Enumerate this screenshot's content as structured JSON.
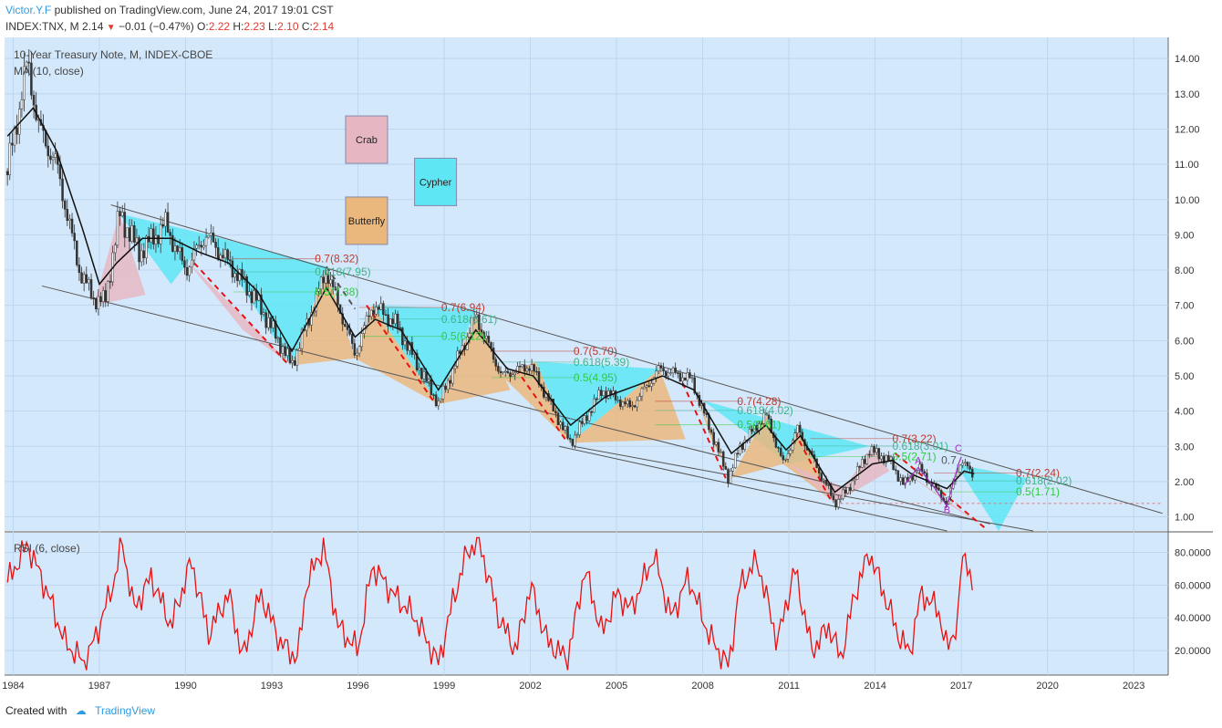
{
  "header": {
    "author": "Victor.Y.F",
    "published": "published on TradingView.com, June 24, 2017 19:01 CST",
    "symbol": "INDEX:TNX, M",
    "last": "2.14",
    "change": "−0.01 (−0.47%)",
    "o_label": "O:",
    "o": "2.22",
    "h_label": "H:",
    "h": "2.23",
    "l_label": "L:",
    "l": "2.10",
    "c_label": "C:",
    "c": "2.14"
  },
  "footer": {
    "created_with": "Created with",
    "brand": "TradingView"
  },
  "colors": {
    "background": "#d4e8fb",
    "candle": "#333333",
    "ma": "#111111",
    "rsi": "#e8110f",
    "cyan": "#5ee6f4",
    "pink": "#e6b7c3",
    "orange": "#eab77c"
  },
  "chart_data": [
    {
      "type": "line",
      "title": "10-Year Treasury Note, M, INDEX-CBOE",
      "indicator": "MA (10, close)",
      "xlim": [
        1983.7,
        2024.2
      ],
      "ylim": [
        0.6,
        14.6
      ],
      "y_ticks": [
        "14.00",
        "13.00",
        "12.00",
        "11.00",
        "10.00",
        "9.00",
        "8.00",
        "7.00",
        "6.00",
        "5.00",
        "4.00",
        "3.00",
        "2.00",
        "1.00"
      ],
      "y_tick_values": [
        14,
        13,
        12,
        11,
        10,
        9,
        8,
        7,
        6,
        5,
        4,
        3,
        2,
        1
      ],
      "x_ticks": [
        "1984",
        "1987",
        "1990",
        "1993",
        "1996",
        "1999",
        "2002",
        "2005",
        "2008",
        "2011",
        "2014",
        "2017",
        "2020",
        "2023"
      ],
      "x_tick_values": [
        1984,
        1987,
        1990,
        1993,
        1996,
        1999,
        2002,
        2005,
        2008,
        2011,
        2014,
        2017,
        2020,
        2023
      ],
      "price_path": [
        [
          1983.8,
          10.8
        ],
        [
          1984.5,
          13.9
        ],
        [
          1984.9,
          12.0
        ],
        [
          1985.5,
          11.0
        ],
        [
          1986.3,
          8.0
        ],
        [
          1986.8,
          7.2
        ],
        [
          1987.2,
          7.1
        ],
        [
          1987.7,
          9.6
        ],
        [
          1988.4,
          8.5
        ],
        [
          1989.3,
          9.3
        ],
        [
          1990.0,
          8.0
        ],
        [
          1990.7,
          9.0
        ],
        [
          1991.5,
          8.2
        ],
        [
          1992.5,
          7.1
        ],
        [
          1993.7,
          5.3
        ],
        [
          1994.9,
          8.0
        ],
        [
          1995.9,
          5.6
        ],
        [
          1996.5,
          7.0
        ],
        [
          1997.3,
          6.5
        ],
        [
          1998.8,
          4.2
        ],
        [
          2000.1,
          6.7
        ],
        [
          2001.0,
          5.0
        ],
        [
          2002.0,
          5.3
        ],
        [
          2003.4,
          3.1
        ],
        [
          2004.5,
          4.6
        ],
        [
          2005.5,
          4.1
        ],
        [
          2006.5,
          5.2
        ],
        [
          2007.6,
          4.9
        ],
        [
          2008.9,
          2.1
        ],
        [
          2009.3,
          3.0
        ],
        [
          2010.2,
          3.9
        ],
        [
          2010.8,
          2.5
        ],
        [
          2011.3,
          3.5
        ],
        [
          2012.6,
          1.4
        ],
        [
          2013.0,
          1.7
        ],
        [
          2013.8,
          2.9
        ],
        [
          2014.5,
          2.6
        ],
        [
          2015.0,
          1.9
        ],
        [
          2015.5,
          2.4
        ],
        [
          2016.5,
          1.4
        ],
        [
          2016.9,
          2.4
        ],
        [
          2017.0,
          2.6
        ],
        [
          2017.45,
          2.14
        ]
      ],
      "ma_path": [
        [
          1983.8,
          11.8
        ],
        [
          1984.7,
          12.6
        ],
        [
          1985.5,
          11.4
        ],
        [
          1986.4,
          9.2
        ],
        [
          1987.0,
          7.6
        ],
        [
          1987.6,
          8.2
        ],
        [
          1988.5,
          8.9
        ],
        [
          1989.5,
          8.9
        ],
        [
          1990.5,
          8.5
        ],
        [
          1991.5,
          8.2
        ],
        [
          1992.5,
          7.4
        ],
        [
          1993.7,
          5.7
        ],
        [
          1994.9,
          7.5
        ],
        [
          1995.9,
          6.1
        ],
        [
          1996.6,
          6.6
        ],
        [
          1997.5,
          6.3
        ],
        [
          1998.8,
          4.6
        ],
        [
          2000.1,
          6.3
        ],
        [
          2001.2,
          5.2
        ],
        [
          2002.1,
          5.0
        ],
        [
          2003.4,
          3.6
        ],
        [
          2004.6,
          4.4
        ],
        [
          2006.6,
          5.0
        ],
        [
          2007.7,
          4.6
        ],
        [
          2009.0,
          2.8
        ],
        [
          2010.2,
          3.6
        ],
        [
          2010.9,
          2.9
        ],
        [
          2011.4,
          3.3
        ],
        [
          2012.6,
          1.7
        ],
        [
          2013.9,
          2.5
        ],
        [
          2014.6,
          2.6
        ],
        [
          2015.3,
          2.2
        ],
        [
          2016.5,
          1.8
        ],
        [
          2017.1,
          2.3
        ],
        [
          2017.45,
          2.22
        ]
      ],
      "channel_lines": [
        [
          [
            1987.4,
            9.85
          ],
          [
            2024.0,
            1.1
          ]
        ],
        [
          [
            1985.0,
            7.55
          ],
          [
            2018.0,
            0.8
          ]
        ],
        [
          [
            2003.0,
            3.0
          ],
          [
            2016.5,
            0.6
          ]
        ],
        [
          [
            2003.5,
            3.0
          ],
          [
            2019.5,
            0.6
          ]
        ]
      ],
      "fib_labels": [
        {
          "text": "0.7(8.32)",
          "x": 1994.5,
          "y": 8.32,
          "color": "#c0392b"
        },
        {
          "text": "0.618(7.95)",
          "x": 1994.5,
          "y": 7.95,
          "color": "#3eb489"
        },
        {
          "text": "0.5(7.38)",
          "x": 1994.5,
          "y": 7.38,
          "color": "#2ecc40"
        },
        {
          "text": "0.7(6.94)",
          "x": 1998.9,
          "y": 6.94,
          "color": "#c0392b"
        },
        {
          "text": "0.618(6.61)",
          "x": 1998.9,
          "y": 6.61,
          "color": "#3eb489"
        },
        {
          "text": "0.5(6.12)",
          "x": 1998.9,
          "y": 6.12,
          "color": "#2ecc40"
        },
        {
          "text": "0.7(5.70)",
          "x": 2003.5,
          "y": 5.7,
          "color": "#c0392b"
        },
        {
          "text": "0.618(5.39)",
          "x": 2003.5,
          "y": 5.39,
          "color": "#3eb489"
        },
        {
          "text": "0.5(4.95)",
          "x": 2003.5,
          "y": 4.95,
          "color": "#2ecc40"
        },
        {
          "text": "0.7(4.28)",
          "x": 2009.2,
          "y": 4.28,
          "color": "#c0392b"
        },
        {
          "text": "0.618(4.02)",
          "x": 2009.2,
          "y": 4.02,
          "color": "#3eb489"
        },
        {
          "text": "0.5(3.61)",
          "x": 2009.2,
          "y": 3.61,
          "color": "#2ecc40"
        },
        {
          "text": "0.7(3.22)",
          "x": 2014.6,
          "y": 3.22,
          "color": "#c0392b"
        },
        {
          "text": "0.618(3.01)",
          "x": 2014.6,
          "y": 3.01,
          "color": "#3eb489"
        },
        {
          "text": "0.5(2.71)",
          "x": 2014.6,
          "y": 2.71,
          "color": "#2ecc40"
        },
        {
          "text": "0.7(2.24)",
          "x": 2018.9,
          "y": 2.24,
          "color": "#c0392b"
        },
        {
          "text": "0.618(2.02)",
          "x": 2018.9,
          "y": 2.02,
          "color": "#3eb489"
        },
        {
          "text": "0.5(1.71)",
          "x": 2018.9,
          "y": 1.71,
          "color": "#2ecc40"
        },
        {
          "text": "0.7",
          "x": 2016.3,
          "y": 2.6,
          "color": "#555555"
        }
      ],
      "abc_labels": [
        {
          "text": "A",
          "x": 2015.5,
          "y": 2.5
        },
        {
          "text": "B",
          "x": 2016.5,
          "y": 1.1
        },
        {
          "text": "C",
          "x": 2016.9,
          "y": 2.85
        }
      ],
      "pattern_legend": [
        {
          "text": "Crab",
          "x": 1996.3,
          "y": 11.7,
          "color": "#e6b7c3"
        },
        {
          "text": "Cypher",
          "x": 1998.7,
          "y": 10.5,
          "color": "#5ee6f4"
        },
        {
          "text": "Butterfly",
          "x": 1996.3,
          "y": 9.4,
          "color": "#eab77c"
        }
      ]
    },
    {
      "type": "line",
      "title": "RSI (6, close)",
      "ylim": [
        5,
        92
      ],
      "y_ticks": [
        "80.0000",
        "60.0000",
        "40.0000",
        "20.0000"
      ],
      "y_tick_values": [
        80,
        60,
        40,
        20
      ],
      "rsi_anchors": [
        [
          1983.8,
          62
        ],
        [
          1984.5,
          85
        ],
        [
          1985.2,
          55
        ],
        [
          1985.8,
          25
        ],
        [
          1986.5,
          12
        ],
        [
          1987.0,
          35
        ],
        [
          1987.5,
          62
        ],
        [
          1987.8,
          86
        ],
        [
          1988.2,
          45
        ],
        [
          1988.8,
          65
        ],
        [
          1989.5,
          35
        ],
        [
          1990.2,
          75
        ],
        [
          1990.8,
          30
        ],
        [
          1991.5,
          55
        ],
        [
          1992.0,
          15
        ],
        [
          1992.6,
          55
        ],
        [
          1993.3,
          25
        ],
        [
          1993.9,
          15
        ],
        [
          1994.2,
          60
        ],
        [
          1994.8,
          84
        ],
        [
          1995.3,
          35
        ],
        [
          1996.0,
          20
        ],
        [
          1996.5,
          72
        ],
        [
          1997.2,
          55
        ],
        [
          1998.0,
          40
        ],
        [
          1998.8,
          12
        ],
        [
          1999.3,
          50
        ],
        [
          1999.8,
          80
        ],
        [
          2000.2,
          88
        ],
        [
          2000.9,
          40
        ],
        [
          2001.5,
          20
        ],
        [
          2002.0,
          60
        ],
        [
          2002.6,
          25
        ],
        [
          2003.3,
          15
        ],
        [
          2003.9,
          70
        ],
        [
          2004.5,
          30
        ],
        [
          2005.0,
          55
        ],
        [
          2005.5,
          45
        ],
        [
          2006.3,
          78
        ],
        [
          2006.9,
          40
        ],
        [
          2007.5,
          65
        ],
        [
          2008.2,
          30
        ],
        [
          2008.9,
          10
        ],
        [
          2009.3,
          60
        ],
        [
          2009.9,
          75
        ],
        [
          2010.6,
          25
        ],
        [
          2011.2,
          70
        ],
        [
          2011.8,
          20
        ],
        [
          2012.4,
          35
        ],
        [
          2012.8,
          15
        ],
        [
          2013.3,
          55
        ],
        [
          2013.8,
          80
        ],
        [
          2014.2,
          60
        ],
        [
          2014.8,
          30
        ],
        [
          2015.2,
          18
        ],
        [
          2015.6,
          55
        ],
        [
          2016.2,
          45
        ],
        [
          2016.5,
          20
        ],
        [
          2016.9,
          40
        ],
        [
          2017.0,
          75
        ],
        [
          2017.2,
          78
        ],
        [
          2017.45,
          48
        ]
      ]
    }
  ]
}
